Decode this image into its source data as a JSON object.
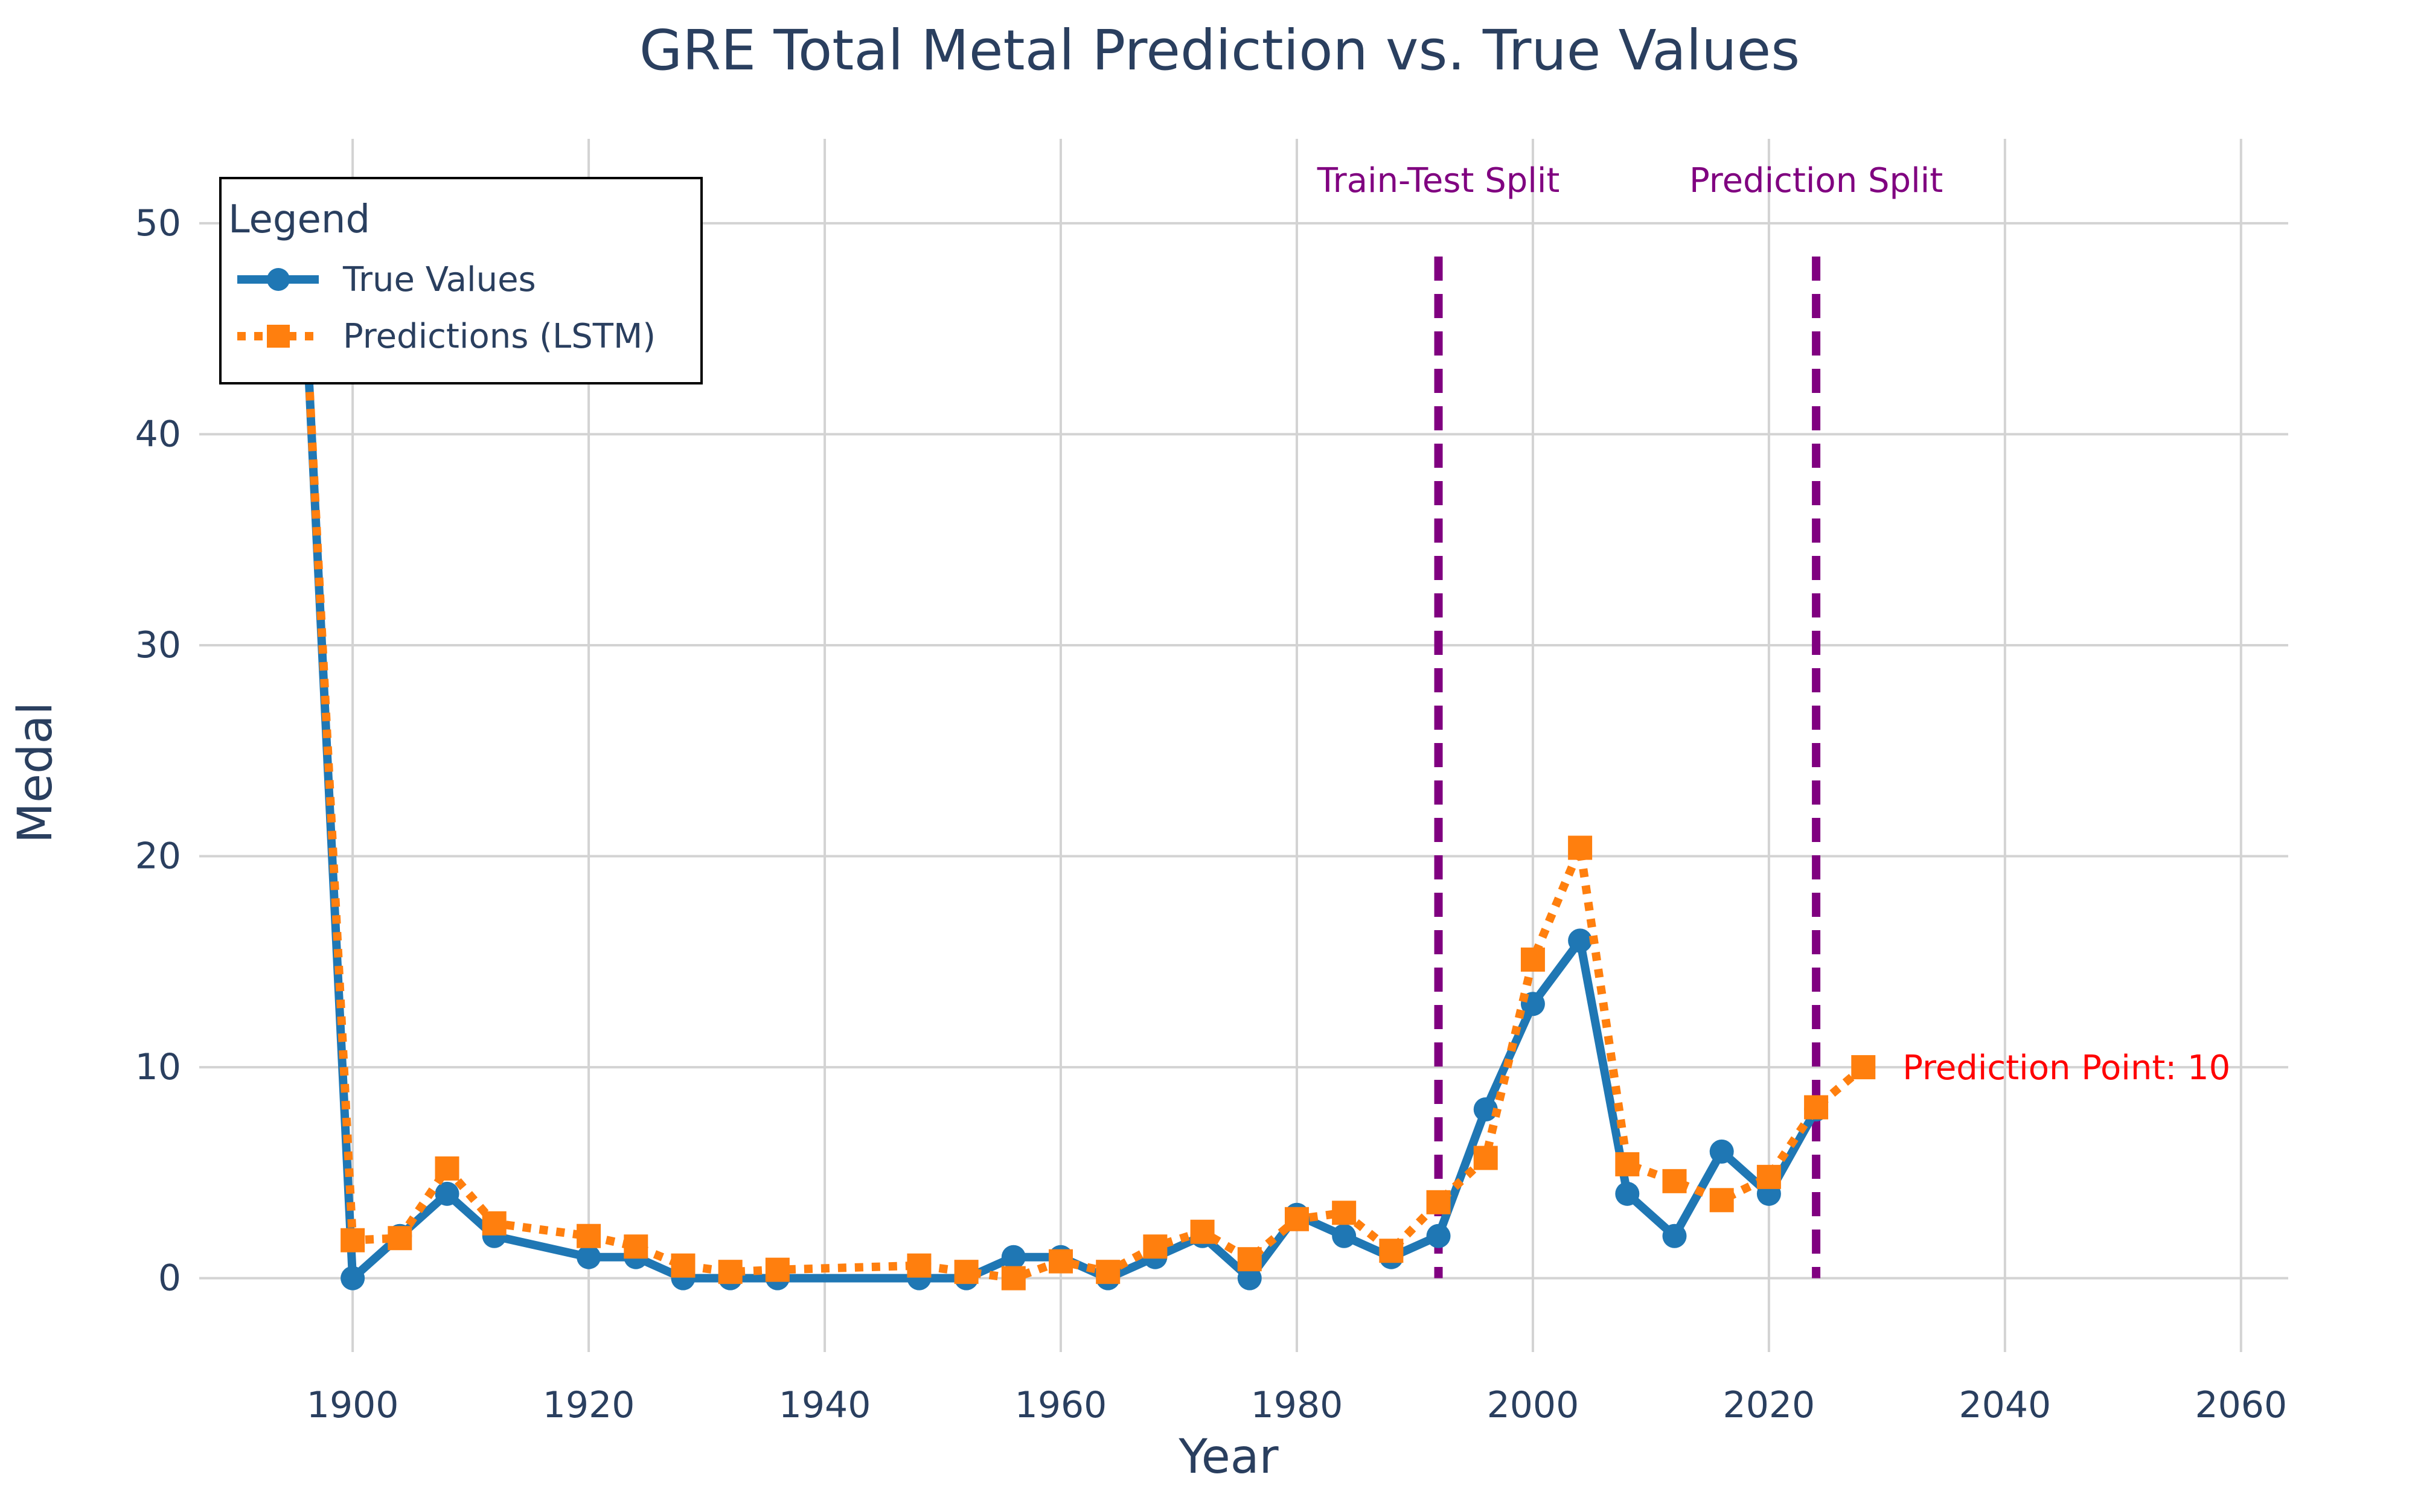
{
  "chart_data": {
    "type": "line",
    "title": "GRE Total Metal Prediction vs. True Values",
    "xlabel": "Year",
    "ylabel": "Medal",
    "xlim": [
      1887,
      2064
    ],
    "ylim": [
      -3.5,
      54
    ],
    "x_ticks": [
      1900,
      1920,
      1940,
      1960,
      1980,
      2000,
      2020,
      2040,
      2060
    ],
    "y_ticks": [
      0,
      10,
      20,
      30,
      40,
      50
    ],
    "grid": true,
    "legend": {
      "title": "Legend",
      "placement": "top-left",
      "entries": [
        "True Values",
        "Predictions (LSTM)"
      ]
    },
    "series": [
      {
        "name": "True Values",
        "color": "#1f77b4",
        "line_style": "solid",
        "marker": "circle",
        "x": [
          1896,
          1900,
          1904,
          1908,
          1912,
          1920,
          1924,
          1928,
          1932,
          1936,
          1948,
          1952,
          1956,
          1960,
          1964,
          1968,
          1972,
          1976,
          1980,
          1984,
          1988,
          1992,
          1996,
          2000,
          2004,
          2008,
          2012,
          2016,
          2020,
          2024
        ],
        "y": [
          46,
          0,
          2,
          4,
          2,
          1,
          1,
          0,
          0,
          0,
          0,
          0,
          1,
          1,
          0,
          1,
          2,
          0,
          3,
          2,
          1,
          2,
          8,
          13,
          16,
          4,
          2,
          6,
          4,
          8
        ]
      },
      {
        "name": "Predictions (LSTM)",
        "color": "#ff7f0e",
        "line_style": "dotted",
        "marker": "square",
        "x": [
          1896,
          1900,
          1904,
          1908,
          1912,
          1920,
          1924,
          1928,
          1932,
          1936,
          1948,
          1952,
          1956,
          1960,
          1964,
          1968,
          1972,
          1976,
          1980,
          1984,
          1988,
          1992,
          1996,
          2000,
          2004,
          2008,
          2012,
          2016,
          2020,
          2024,
          2028
        ],
        "y": [
          46,
          1.8,
          1.9,
          5.2,
          2.6,
          2.0,
          1.5,
          0.6,
          0.3,
          0.4,
          0.6,
          0.3,
          0.0,
          0.8,
          0.3,
          1.5,
          2.2,
          0.9,
          2.8,
          3.1,
          1.3,
          3.6,
          5.7,
          15.1,
          20.4,
          5.4,
          4.6,
          3.7,
          4.8,
          8.1,
          10
        ]
      }
    ],
    "vertical_lines": [
      {
        "x": 1992,
        "label": "Train-Test Split",
        "color": "#800080"
      },
      {
        "x": 2024,
        "label": "Prediction Split",
        "color": "#800080"
      }
    ],
    "annotation": {
      "x": 2028,
      "y": 10,
      "text": "Prediction Point: 10",
      "color": "#ff0000"
    }
  }
}
